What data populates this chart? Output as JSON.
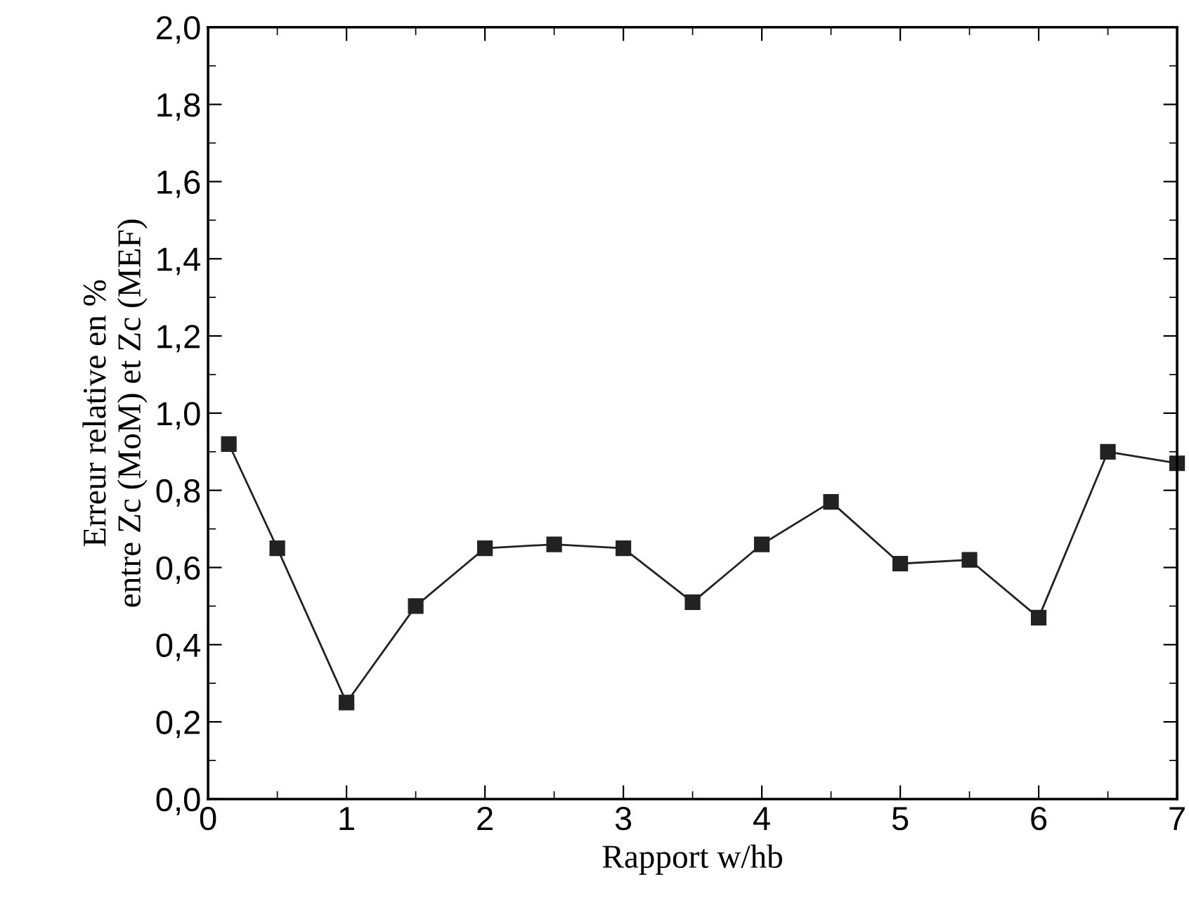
{
  "chart_data": {
    "type": "line",
    "xlabel": "Rapport w/hb",
    "ylabel": "Erreur relative en %\nentre Zc (MoM) et Zc (MEF)",
    "x": [
      0.15,
      0.5,
      1,
      1.5,
      2,
      2.5,
      3,
      3.5,
      4,
      4.5,
      5,
      5.5,
      6,
      6.5,
      7
    ],
    "series": [
      {
        "color": "#222222",
        "values": [
          0.92,
          0.65,
          0.25,
          0.5,
          0.65,
          0.66,
          0.65,
          0.51,
          0.66,
          0.77,
          0.61,
          0.62,
          0.47,
          0.9,
          0.87
        ]
      }
    ],
    "xlim": [
      0,
      7
    ],
    "xticks": [
      0,
      1,
      2,
      3,
      4,
      5,
      6,
      7
    ],
    "ylim": [
      0,
      2
    ],
    "yticks": [
      {
        "value": 0,
        "label": "0,0"
      },
      {
        "value": 0.2,
        "label": "0,2"
      },
      {
        "value": 0.4,
        "label": "0,4"
      },
      {
        "value": 0.6,
        "label": "0,6"
      },
      {
        "value": 0.8,
        "label": "0,8"
      },
      {
        "value": 1.0,
        "label": "1,0"
      },
      {
        "value": 1.2,
        "label": "1,2"
      },
      {
        "value": 1.4,
        "label": "1,4"
      },
      {
        "value": 1.6,
        "label": "1,6"
      },
      {
        "value": 1.8,
        "label": "1,8"
      },
      {
        "value": 2.0,
        "label": "2,0"
      }
    ],
    "marker": "square",
    "line_style": "solid",
    "grid": false,
    "legend": false
  }
}
